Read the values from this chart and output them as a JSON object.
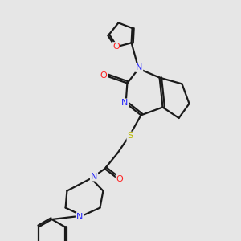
{
  "bg_color": "#e6e6e6",
  "bond_color": "#1a1a1a",
  "atom_colors": {
    "N": "#2020ff",
    "O": "#ff2020",
    "S": "#b8b800",
    "C": "#1a1a1a"
  },
  "font_size": 8.0,
  "line_width": 1.6,
  "figsize": [
    3.0,
    3.0
  ],
  "dpi": 100
}
